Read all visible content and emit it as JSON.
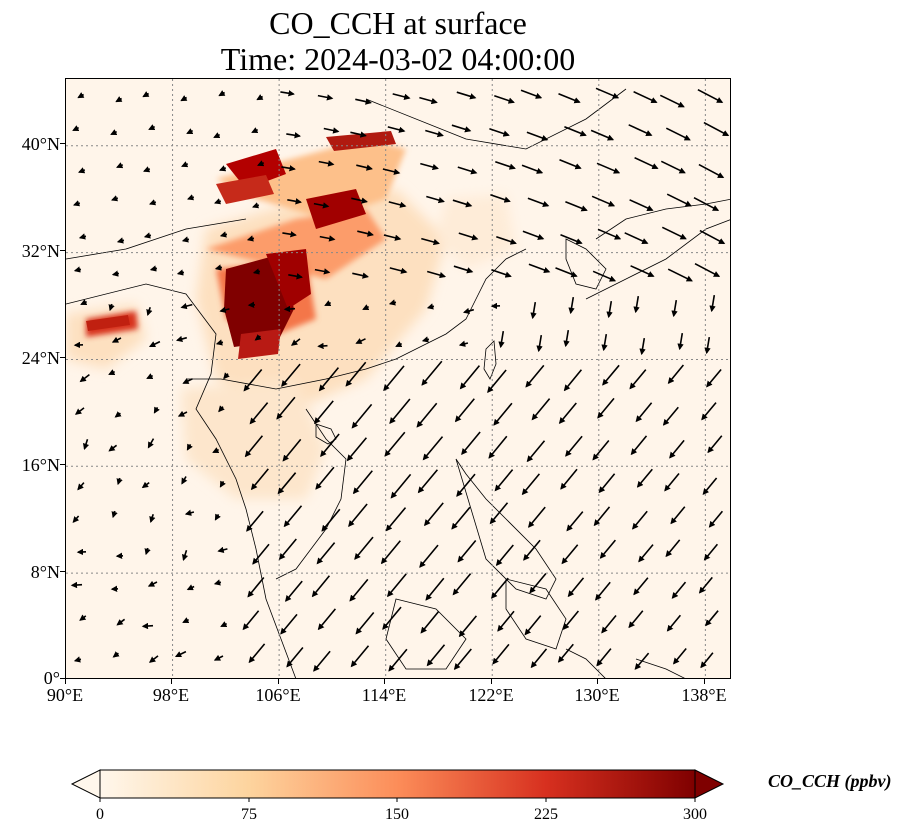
{
  "title": {
    "line1": "CO_CCH at surface",
    "line2": "Time: 2024-03-02 04:00:00"
  },
  "map": {
    "variable": "CO_CCH",
    "level": "surface",
    "projection": "PlateCarree",
    "lon_range": [
      90,
      140
    ],
    "lat_range": [
      0,
      45
    ],
    "gridlines": "dotted grey",
    "background_color": "#fff5ea",
    "lat_ticks": [
      "0°",
      "8°N",
      "16°N",
      "24°N",
      "32°N",
      "40°N"
    ],
    "lon_ticks": [
      "90°E",
      "98°E",
      "106°E",
      "114°E",
      "122°E",
      "130°E",
      "138°E"
    ],
    "wind_vectors": "black arrows"
  },
  "colorbar": {
    "label": "CO_CCH (ppbv)",
    "colormap": "OrRd",
    "range": [
      0,
      300
    ],
    "extend": "both",
    "ticks": [
      "0",
      "75",
      "150",
      "225",
      "300"
    ],
    "colors": [
      "#fff7ec",
      "#fdd49e",
      "#fc8d59",
      "#d7301f",
      "#7f0000"
    ]
  }
}
